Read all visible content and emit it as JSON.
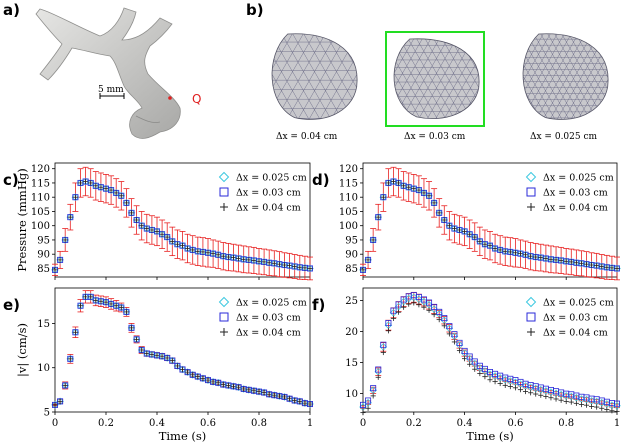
{
  "panel_labels": [
    "a)",
    "b)",
    "c)",
    "d)",
    "e)",
    "f)"
  ],
  "vessel": {
    "scale_label": "5 mm",
    "point_label": "Q",
    "point_color": "#e02020"
  },
  "meshes": {
    "labels": [
      "Δx = 0.04 cm",
      "Δx = 0.03 cm",
      "Δx = 0.025 cm"
    ],
    "highlight_color": "#22dd22",
    "highlighted_index": 1
  },
  "colors": {
    "diamond": "#3cc8e0",
    "square": "#2a2ad8",
    "plus": "#222222",
    "errorbar": "#e82020"
  },
  "legend": [
    "Δx = 0.025 cm",
    "Δx = 0.03 cm",
    "Δx = 0.04 cm"
  ],
  "chart_data": [
    {
      "panel": "c)",
      "type": "scatter",
      "xlabel": "",
      "ylabel": "Pressure (mmHg)",
      "xlim": [
        0,
        1.0
      ],
      "ylim": [
        82,
        122
      ],
      "yticks": [
        85,
        90,
        95,
        100,
        105,
        110,
        115,
        120
      ],
      "xticks": [],
      "errorbars": true,
      "t": [
        0.0,
        0.02,
        0.04,
        0.06,
        0.08,
        0.1,
        0.12,
        0.14,
        0.16,
        0.18,
        0.2,
        0.22,
        0.24,
        0.26,
        0.28,
        0.3,
        0.32,
        0.34,
        0.36,
        0.38,
        0.4,
        0.42,
        0.44,
        0.46,
        0.48,
        0.5,
        0.52,
        0.54,
        0.56,
        0.58,
        0.6,
        0.62,
        0.64,
        0.66,
        0.68,
        0.7,
        0.72,
        0.74,
        0.76,
        0.78,
        0.8,
        0.82,
        0.84,
        0.86,
        0.88,
        0.9,
        0.92,
        0.94,
        0.96,
        0.98,
        1.0
      ],
      "mean": [
        84.5,
        88,
        95,
        103,
        110,
        115,
        115.5,
        115,
        114,
        113.5,
        113,
        112.5,
        111.5,
        110.5,
        108,
        104.5,
        102,
        100,
        99,
        98.5,
        98,
        97,
        96,
        94.5,
        93.5,
        93,
        92,
        91.5,
        91,
        90.8,
        90.5,
        90.2,
        89.8,
        89.3,
        89,
        88.8,
        88.5,
        88.2,
        88,
        87.8,
        87.5,
        87.3,
        87,
        86.8,
        86.5,
        86.2,
        86,
        85.7,
        85.4,
        85.2,
        85
      ],
      "err": [
        2,
        3,
        4,
        4.5,
        5,
        5,
        5,
        5,
        5,
        5,
        5,
        5,
        5,
        5,
        5,
        5,
        5,
        5,
        5,
        5,
        5,
        5,
        5,
        5,
        5,
        5,
        5,
        5,
        5,
        5,
        5,
        4.8,
        4.8,
        4.8,
        4.8,
        4.7,
        4.7,
        4.7,
        4.6,
        4.6,
        4.5,
        4.5,
        4.5,
        4.4,
        4.4,
        4.3,
        4.3,
        4.2,
        4.2,
        4.1,
        4
      ],
      "offsets": [
        0,
        0,
        0
      ]
    },
    {
      "panel": "d)",
      "type": "scatter",
      "xlabel": "",
      "ylabel": "",
      "xlim": [
        0,
        1.0
      ],
      "ylim": [
        82,
        122
      ],
      "yticks": [
        85,
        90,
        95,
        100,
        105,
        110,
        115,
        120
      ],
      "xticks": [],
      "errorbars": true,
      "t": [
        0.0,
        0.02,
        0.04,
        0.06,
        0.08,
        0.1,
        0.12,
        0.14,
        0.16,
        0.18,
        0.2,
        0.22,
        0.24,
        0.26,
        0.28,
        0.3,
        0.32,
        0.34,
        0.36,
        0.38,
        0.4,
        0.42,
        0.44,
        0.46,
        0.48,
        0.5,
        0.52,
        0.54,
        0.56,
        0.58,
        0.6,
        0.62,
        0.64,
        0.66,
        0.68,
        0.7,
        0.72,
        0.74,
        0.76,
        0.78,
        0.8,
        0.82,
        0.84,
        0.86,
        0.88,
        0.9,
        0.92,
        0.94,
        0.96,
        0.98,
        1.0
      ],
      "mean": [
        84.5,
        88,
        95,
        103,
        110,
        115,
        115.5,
        115,
        114,
        113.5,
        113,
        112.5,
        111.5,
        110.5,
        108,
        104.5,
        102,
        100,
        99,
        98.5,
        98,
        97,
        96,
        94.5,
        93.5,
        93,
        92,
        91.5,
        91,
        90.8,
        90.5,
        90.2,
        89.8,
        89.3,
        89,
        88.8,
        88.5,
        88.2,
        88,
        87.8,
        87.5,
        87.3,
        87,
        86.8,
        86.5,
        86.2,
        86,
        85.7,
        85.4,
        85.2,
        85
      ],
      "err": [
        2,
        3,
        4,
        4.5,
        5,
        5,
        5,
        5,
        5,
        5,
        5,
        5,
        5,
        5,
        5,
        5,
        5,
        5,
        5,
        5,
        5,
        5,
        5,
        5,
        5,
        5,
        5,
        5,
        5,
        5,
        5,
        4.8,
        4.8,
        4.8,
        4.8,
        4.7,
        4.7,
        4.7,
        4.6,
        4.6,
        4.5,
        4.5,
        4.5,
        4.4,
        4.4,
        4.3,
        4.3,
        4.2,
        4.2,
        4.1,
        4
      ],
      "offsets": [
        0,
        0,
        0
      ]
    },
    {
      "panel": "e)",
      "type": "scatter",
      "xlabel": "Time (s)",
      "ylabel": "|v| (cm/s)",
      "xlim": [
        0,
        1.0
      ],
      "ylim": [
        5,
        19
      ],
      "yticks": [
        5,
        10,
        15
      ],
      "xticks": [
        0.0,
        0.2,
        0.4,
        0.6,
        0.8,
        1.0
      ],
      "errorbars": true,
      "t": [
        0.0,
        0.02,
        0.04,
        0.06,
        0.08,
        0.1,
        0.12,
        0.14,
        0.16,
        0.18,
        0.2,
        0.22,
        0.24,
        0.26,
        0.28,
        0.3,
        0.32,
        0.34,
        0.36,
        0.38,
        0.4,
        0.42,
        0.44,
        0.46,
        0.48,
        0.5,
        0.52,
        0.54,
        0.56,
        0.58,
        0.6,
        0.62,
        0.64,
        0.66,
        0.68,
        0.7,
        0.72,
        0.74,
        0.76,
        0.78,
        0.8,
        0.82,
        0.84,
        0.86,
        0.88,
        0.9,
        0.92,
        0.94,
        0.96,
        0.98,
        1.0
      ],
      "mean": [
        5.8,
        6.2,
        8,
        11,
        14,
        17,
        18,
        18,
        17.6,
        17.5,
        17.4,
        17.2,
        17,
        16.8,
        16.3,
        14.5,
        13.2,
        12,
        11.6,
        11.5,
        11.4,
        11.3,
        11.1,
        10.8,
        10.2,
        9.8,
        9.5,
        9.2,
        9,
        8.8,
        8.6,
        8.4,
        8.3,
        8.1,
        8,
        7.9,
        7.8,
        7.6,
        7.5,
        7.4,
        7.3,
        7.2,
        7,
        6.9,
        6.8,
        6.7,
        6.5,
        6.3,
        6.2,
        6,
        5.9
      ],
      "err": [
        0.1,
        0.2,
        0.4,
        0.5,
        0.6,
        0.7,
        0.7,
        0.7,
        0.6,
        0.6,
        0.6,
        0.6,
        0.6,
        0.5,
        0.5,
        0.5,
        0.4,
        0.4,
        0.3,
        0.3,
        0.3,
        0.3,
        0.3,
        0.3,
        0.3,
        0.3,
        0.2,
        0.2,
        0.2,
        0.2,
        0.2,
        0.2,
        0.2,
        0.2,
        0.2,
        0.2,
        0.2,
        0.2,
        0.2,
        0.2,
        0.2,
        0.2,
        0.2,
        0.2,
        0.2,
        0.2,
        0.2,
        0.2,
        0.2,
        0.2,
        0.2
      ],
      "offsets": [
        0,
        0,
        0
      ]
    },
    {
      "panel": "f)",
      "type": "scatter",
      "xlabel": "Time (s)",
      "ylabel": "",
      "xlim": [
        0,
        1.0
      ],
      "ylim": [
        7,
        27
      ],
      "yticks": [
        10,
        15,
        20,
        25
      ],
      "xticks": [
        0.0,
        0.2,
        0.4,
        0.6,
        0.8,
        1.0
      ],
      "errorbars": true,
      "t": [
        0.0,
        0.02,
        0.04,
        0.06,
        0.08,
        0.1,
        0.12,
        0.14,
        0.16,
        0.18,
        0.2,
        0.22,
        0.24,
        0.26,
        0.28,
        0.3,
        0.32,
        0.34,
        0.36,
        0.38,
        0.4,
        0.42,
        0.44,
        0.46,
        0.48,
        0.5,
        0.52,
        0.54,
        0.56,
        0.58,
        0.6,
        0.62,
        0.64,
        0.66,
        0.68,
        0.7,
        0.72,
        0.74,
        0.76,
        0.78,
        0.8,
        0.82,
        0.84,
        0.86,
        0.88,
        0.9,
        0.92,
        0.94,
        0.96,
        0.98,
        1.0
      ],
      "mean": [
        7.8,
        8.5,
        10.5,
        13.5,
        17.5,
        21,
        23,
        24,
        24.8,
        25.3,
        25.5,
        25.2,
        24.8,
        24.3,
        23.6,
        22.8,
        21.8,
        20.5,
        19.2,
        17.8,
        16.5,
        15.6,
        14.8,
        14.1,
        13.6,
        13.1,
        12.8,
        12.5,
        12.2,
        12,
        11.8,
        11.5,
        11.2,
        11,
        10.8,
        10.6,
        10.4,
        10.2,
        10,
        9.8,
        9.6,
        9.5,
        9.3,
        9.1,
        9,
        8.8,
        8.7,
        8.5,
        8.3,
        8.1,
        8
      ],
      "err": [
        0.2,
        0.3,
        0.5,
        0.6,
        0.7,
        0.8,
        0.8,
        0.8,
        0.8,
        0.8,
        0.8,
        0.8,
        0.7,
        0.7,
        0.7,
        0.6,
        0.6,
        0.6,
        0.5,
        0.5,
        0.5,
        0.4,
        0.4,
        0.4,
        0.4,
        0.3,
        0.3,
        0.3,
        0.3,
        0.3,
        0.3,
        0.3,
        0.3,
        0.3,
        0.3,
        0.3,
        0.3,
        0.3,
        0.3,
        0.3,
        0.3,
        0.3,
        0.3,
        0.3,
        0.3,
        0.3,
        0.3,
        0.3,
        0.3,
        0.3,
        0.3
      ],
      "offsets": [
        0,
        0.35,
        -0.9
      ]
    }
  ]
}
